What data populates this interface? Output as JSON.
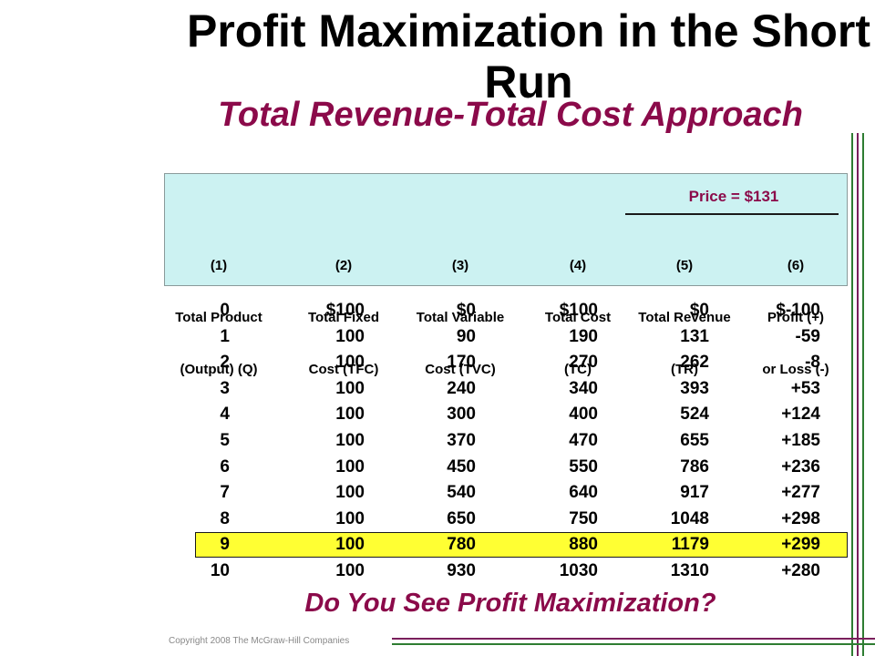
{
  "title": "Profit Maximization in the Short Run",
  "subtitle": "Total Revenue-Total Cost Approach",
  "price_label": "Price = $131",
  "column_headers": [
    {
      "number": "(1)",
      "line1": "Total Product",
      "line2": "(Output) (Q)"
    },
    {
      "number": "(2)",
      "line1": "Total Fixed",
      "line2": "Cost (TFC)"
    },
    {
      "number": "(3)",
      "line1": "Total Variable",
      "line2": "Cost (TVC)"
    },
    {
      "number": "(4)",
      "line1": "Total Cost",
      "line2": "(TC)"
    },
    {
      "number": "(5)",
      "line1": "Total Revenue",
      "line2": "(TR)"
    },
    {
      "number": "(6)",
      "line1": "Profit (+)",
      "line2": "or Loss (-)"
    }
  ],
  "rows": [
    {
      "q": "0",
      "tfc": "$100",
      "tvc": "$0",
      "tc": "$100",
      "tr": "$0",
      "profit": "$-100"
    },
    {
      "q": "1",
      "tfc": "100",
      "tvc": "90",
      "tc": "190",
      "tr": "131",
      "profit": "-59"
    },
    {
      "q": "2",
      "tfc": "100",
      "tvc": "170",
      "tc": "270",
      "tr": "262",
      "profit": "-8"
    },
    {
      "q": "3",
      "tfc": "100",
      "tvc": "240",
      "tc": "340",
      "tr": "393",
      "profit": "+53"
    },
    {
      "q": "4",
      "tfc": "100",
      "tvc": "300",
      "tc": "400",
      "tr": "524",
      "profit": "+124"
    },
    {
      "q": "5",
      "tfc": "100",
      "tvc": "370",
      "tc": "470",
      "tr": "655",
      "profit": "+185"
    },
    {
      "q": "6",
      "tfc": "100",
      "tvc": "450",
      "tc": "550",
      "tr": "786",
      "profit": "+236"
    },
    {
      "q": "7",
      "tfc": "100",
      "tvc": "540",
      "tc": "640",
      "tr": "917",
      "profit": "+277"
    },
    {
      "q": "8",
      "tfc": "100",
      "tvc": "650",
      "tc": "750",
      "tr": "1048",
      "profit": "+298"
    },
    {
      "q": "9",
      "tfc": "100",
      "tvc": "780",
      "tc": "880",
      "tr": "1179",
      "profit": "+299"
    },
    {
      "q": "10",
      "tfc": "100",
      "tvc": "930",
      "tc": "1030",
      "tr": "1310",
      "profit": "+280"
    }
  ],
  "highlighted_row": "9",
  "question": "Do You See Profit Maximization?",
  "copyright": "Copyright 2008 The McGraw-Hill Companies",
  "colors": {
    "accent": "#8b0a4a",
    "header_bg": "#ccf2f2",
    "highlight": "#ffff33",
    "line_green": "#2e7d32",
    "line_purple": "#7a1f5c"
  }
}
